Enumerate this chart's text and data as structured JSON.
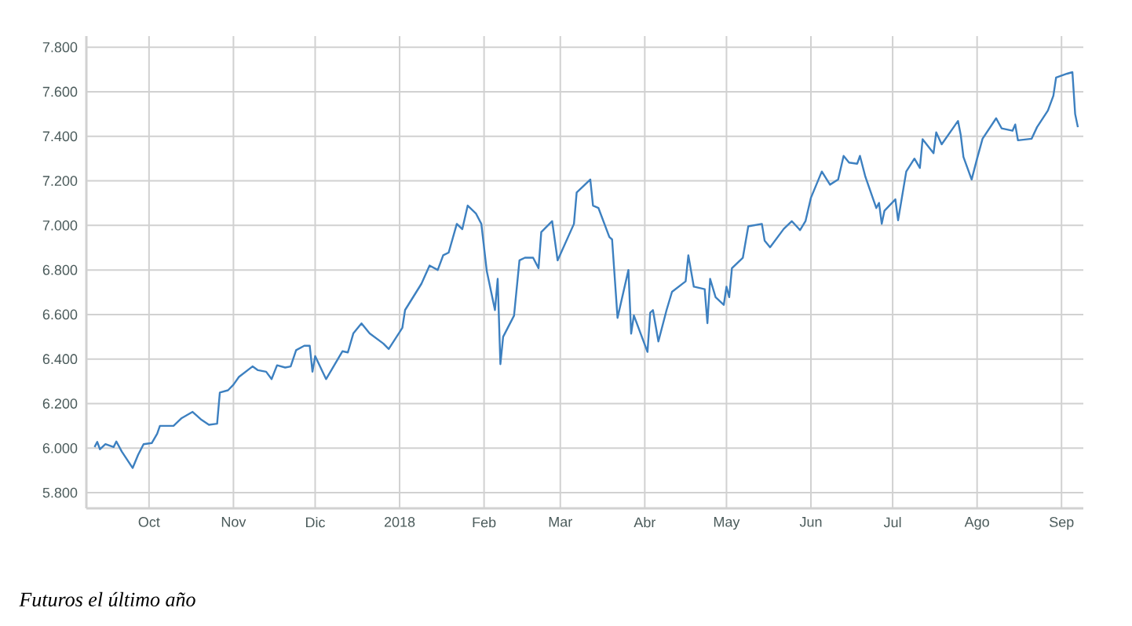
{
  "chart_data": {
    "type": "line",
    "x": [
      "2017-09-11",
      "2017-09-12",
      "2017-09-13",
      "2017-09-15",
      "2017-09-18",
      "2017-09-19",
      "2017-09-21",
      "2017-09-25",
      "2017-09-27",
      "2017-09-29",
      "2017-10-02",
      "2017-10-04",
      "2017-10-05",
      "2017-10-10",
      "2017-10-13",
      "2017-10-17",
      "2017-10-20",
      "2017-10-23",
      "2017-10-26",
      "2017-10-27",
      "2017-10-30",
      "2017-11-01",
      "2017-11-03",
      "2017-11-08",
      "2017-11-10",
      "2017-11-13",
      "2017-11-15",
      "2017-11-17",
      "2017-11-20",
      "2017-11-22",
      "2017-11-24",
      "2017-11-27",
      "2017-11-29",
      "2017-11-30",
      "2017-12-01",
      "2017-12-05",
      "2017-12-11",
      "2017-12-13",
      "2017-12-15",
      "2017-12-18",
      "2017-12-21",
      "2017-12-26",
      "2017-12-28",
      "2018-01-02",
      "2018-01-03",
      "2018-01-09",
      "2018-01-12",
      "2018-01-15",
      "2018-01-17",
      "2018-01-19",
      "2018-01-22",
      "2018-01-24",
      "2018-01-26",
      "2018-01-29",
      "2018-01-31",
      "2018-02-02",
      "2018-02-05",
      "2018-02-06",
      "2018-02-07",
      "2018-02-08",
      "2018-02-12",
      "2018-02-14",
      "2018-02-16",
      "2018-02-19",
      "2018-02-21",
      "2018-02-22",
      "2018-02-26",
      "2018-02-28",
      "2018-03-06",
      "2018-03-07",
      "2018-03-12",
      "2018-03-13",
      "2018-03-15",
      "2018-03-19",
      "2018-03-20",
      "2018-03-22",
      "2018-03-26",
      "2018-03-27",
      "2018-03-28",
      "2018-04-02",
      "2018-04-03",
      "2018-04-04",
      "2018-04-06",
      "2018-04-09",
      "2018-04-11",
      "2018-04-16",
      "2018-04-17",
      "2018-04-19",
      "2018-04-23",
      "2018-04-24",
      "2018-04-25",
      "2018-04-27",
      "2018-04-30",
      "2018-05-01",
      "2018-05-02",
      "2018-05-03",
      "2018-05-07",
      "2018-05-09",
      "2018-05-14",
      "2018-05-15",
      "2018-05-17",
      "2018-05-22",
      "2018-05-25",
      "2018-05-28",
      "2018-05-30",
      "2018-06-01",
      "2018-06-05",
      "2018-06-08",
      "2018-06-11",
      "2018-06-13",
      "2018-06-15",
      "2018-06-18",
      "2018-06-19",
      "2018-06-21",
      "2018-06-25",
      "2018-06-26",
      "2018-06-27",
      "2018-06-28",
      "2018-07-02",
      "2018-07-03",
      "2018-07-06",
      "2018-07-09",
      "2018-07-11",
      "2018-07-12",
      "2018-07-16",
      "2018-07-17",
      "2018-07-19",
      "2018-07-23",
      "2018-07-25",
      "2018-07-26",
      "2018-07-27",
      "2018-07-30",
      "2018-08-01",
      "2018-08-03",
      "2018-08-08",
      "2018-08-10",
      "2018-08-14",
      "2018-08-15",
      "2018-08-16",
      "2018-08-21",
      "2018-08-23",
      "2018-08-27",
      "2018-08-29",
      "2018-08-30",
      "2018-09-03",
      "2018-09-05",
      "2018-09-06",
      "2018-09-07"
    ],
    "values": [
      6005,
      6028,
      5995,
      6018,
      6005,
      6030,
      5985,
      5911,
      5970,
      6018,
      6023,
      6065,
      6100,
      6100,
      6135,
      6163,
      6130,
      6105,
      6110,
      6250,
      6260,
      6285,
      6320,
      6367,
      6350,
      6343,
      6310,
      6372,
      6362,
      6367,
      6440,
      6460,
      6460,
      6343,
      6413,
      6310,
      6435,
      6430,
      6515,
      6560,
      6515,
      6470,
      6445,
      6540,
      6620,
      6738,
      6820,
      6800,
      6866,
      6878,
      7007,
      6983,
      7089,
      7054,
      7007,
      6795,
      6620,
      6760,
      6377,
      6500,
      6595,
      6843,
      6855,
      6855,
      6808,
      6970,
      7019,
      6843,
      7007,
      7148,
      7206,
      7089,
      7078,
      6948,
      6937,
      6585,
      6800,
      6514,
      6596,
      6432,
      6608,
      6620,
      6479,
      6620,
      6702,
      6749,
      6866,
      6725,
      6714,
      6561,
      6760,
      6678,
      6643,
      6725,
      6678,
      6808,
      6855,
      6996,
      7007,
      6932,
      6902,
      6984,
      7019,
      6979,
      7019,
      7124,
      7242,
      7183,
      7206,
      7312,
      7282,
      7277,
      7312,
      7218,
      7078,
      7101,
      7007,
      7066,
      7117,
      7023,
      7242,
      7300,
      7258,
      7387,
      7324,
      7418,
      7364,
      7434,
      7469,
      7406,
      7307,
      7206,
      7300,
      7389,
      7481,
      7436,
      7425,
      7453,
      7382,
      7389,
      7441,
      7516,
      7582,
      7664,
      7681,
      7688,
      7500,
      7441
    ],
    "color": "#3d80c0",
    "xlim": [
      "2017-09-08",
      "2018-09-09"
    ],
    "xticks": [
      {
        "value": "2017-10-01",
        "label": "Oct"
      },
      {
        "value": "2017-11-01",
        "label": "Nov"
      },
      {
        "value": "2017-12-01",
        "label": "Dic"
      },
      {
        "value": "2018-01-01",
        "label": "2018"
      },
      {
        "value": "2018-02-01",
        "label": "Feb"
      },
      {
        "value": "2018-03-01",
        "label": "Mar"
      },
      {
        "value": "2018-04-01",
        "label": "Abr"
      },
      {
        "value": "2018-05-01",
        "label": "May"
      },
      {
        "value": "2018-06-01",
        "label": "Jun"
      },
      {
        "value": "2018-07-01",
        "label": "Jul"
      },
      {
        "value": "2018-08-01",
        "label": "Ago"
      },
      {
        "value": "2018-09-01",
        "label": "Sep"
      }
    ],
    "ylim": [
      5730,
      7850
    ],
    "yticks": [
      {
        "value": 5800,
        "label": "5.800"
      },
      {
        "value": 6000,
        "label": "6.000"
      },
      {
        "value": 6200,
        "label": "6.200"
      },
      {
        "value": 6400,
        "label": "6.400"
      },
      {
        "value": 6600,
        "label": "6.600"
      },
      {
        "value": 6800,
        "label": "6.800"
      },
      {
        "value": 7000,
        "label": "7.000"
      },
      {
        "value": 7200,
        "label": "7.200"
      },
      {
        "value": 7400,
        "label": "7.400"
      },
      {
        "value": 7600,
        "label": "7.600"
      },
      {
        "value": 7800,
        "label": "7.800"
      }
    ],
    "grid": true,
    "marker": "none",
    "line_style": "solid",
    "annotations": [
      "*Futuros el último año*"
    ]
  }
}
